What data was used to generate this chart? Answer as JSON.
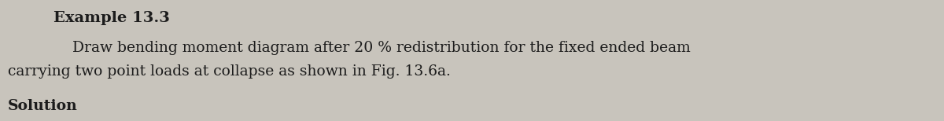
{
  "title": "Example 13.3",
  "body_line1": "    Draw bending moment diagram after 20 % redistribution for the fixed ended beam",
  "body_line2": "carrying two point loads at collapse as shown in Fig. 13.6a.",
  "partial_bottom": "Solution",
  "bg_color": "#c8c4bc",
  "text_color": "#1c1c1c",
  "title_fontsize": 14,
  "body_fontsize": 13.5,
  "figwidth": 12.0,
  "figheight": 1.54,
  "dpi": 100
}
